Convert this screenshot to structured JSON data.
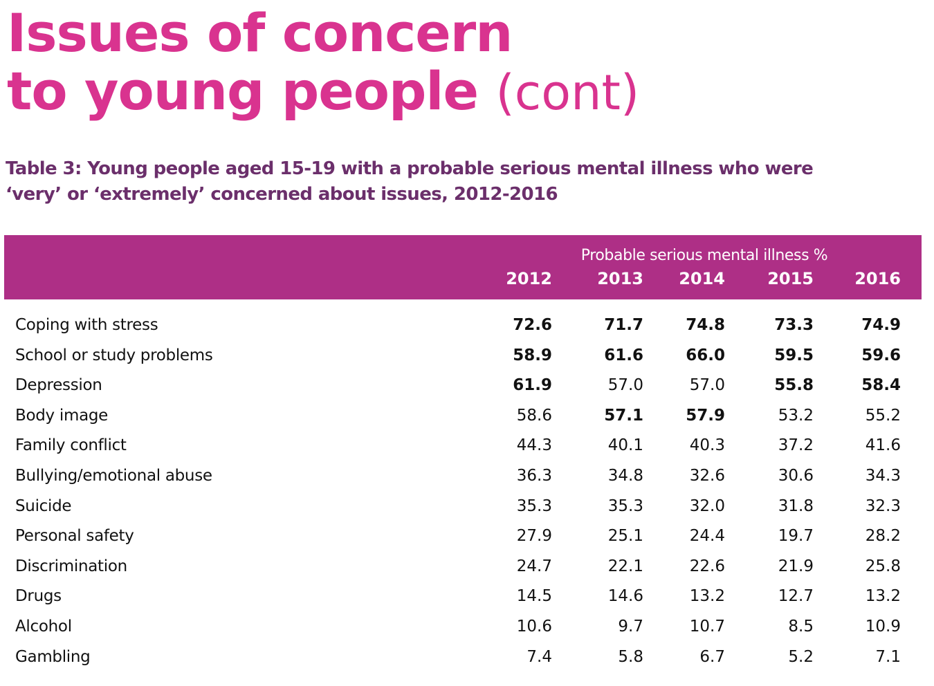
{
  "title": {
    "line1": "Issues of concern",
    "line2": "to young people",
    "suffix": "(cont)"
  },
  "caption": {
    "line1": "Table 3: Young people aged 15-19 with a probable serious mental illness who were",
    "line2": "‘very’ or ‘extremely’ concerned about issues, 2012-2016"
  },
  "table": {
    "group_label": "Probable serious mental illness %",
    "years": [
      "2012",
      "2013",
      "2014",
      "2015",
      "2016"
    ],
    "rows": [
      {
        "label": "Coping with stress",
        "values": [
          "72.6",
          "71.7",
          "74.8",
          "73.3",
          "74.9"
        ],
        "bold": [
          true,
          true,
          true,
          true,
          true
        ]
      },
      {
        "label": "School or study problems",
        "values": [
          "58.9",
          "61.6",
          "66.0",
          "59.5",
          "59.6"
        ],
        "bold": [
          true,
          true,
          true,
          true,
          true
        ]
      },
      {
        "label": "Depression",
        "values": [
          "61.9",
          "57.0",
          "57.0",
          "55.8",
          "58.4"
        ],
        "bold": [
          true,
          false,
          false,
          true,
          true
        ]
      },
      {
        "label": "Body image",
        "values": [
          "58.6",
          "57.1",
          "57.9",
          "53.2",
          "55.2"
        ],
        "bold": [
          false,
          true,
          true,
          false,
          false
        ]
      },
      {
        "label": "Family conflict",
        "values": [
          "44.3",
          "40.1",
          "40.3",
          "37.2",
          "41.6"
        ],
        "bold": [
          false,
          false,
          false,
          false,
          false
        ]
      },
      {
        "label": "Bullying/emotional abuse",
        "values": [
          "36.3",
          "34.8",
          "32.6",
          "30.6",
          "34.3"
        ],
        "bold": [
          false,
          false,
          false,
          false,
          false
        ]
      },
      {
        "label": "Suicide",
        "values": [
          "35.3",
          "35.3",
          "32.0",
          "31.8",
          "32.3"
        ],
        "bold": [
          false,
          false,
          false,
          false,
          false
        ]
      },
      {
        "label": "Personal safety",
        "values": [
          "27.9",
          "25.1",
          "24.4",
          "19.7",
          "28.2"
        ],
        "bold": [
          false,
          false,
          false,
          false,
          false
        ]
      },
      {
        "label": "Discrimination",
        "values": [
          "24.7",
          "22.1",
          "22.6",
          "21.9",
          "25.8"
        ],
        "bold": [
          false,
          false,
          false,
          false,
          false
        ]
      },
      {
        "label": "Drugs",
        "values": [
          "14.5",
          "14.6",
          "13.2",
          "12.7",
          "13.2"
        ],
        "bold": [
          false,
          false,
          false,
          false,
          false
        ]
      },
      {
        "label": "Alcohol",
        "values": [
          "10.6",
          "9.7",
          "10.7",
          "8.5",
          "10.9"
        ],
        "bold": [
          false,
          false,
          false,
          false,
          false
        ]
      },
      {
        "label": "Gambling",
        "values": [
          "7.4",
          "5.8",
          "6.7",
          "5.2",
          "7.1"
        ],
        "bold": [
          false,
          false,
          false,
          false,
          false
        ]
      }
    ]
  },
  "colors": {
    "title": "#d9338f",
    "caption": "#6b2f6b",
    "header_band": "#ae2f86"
  }
}
